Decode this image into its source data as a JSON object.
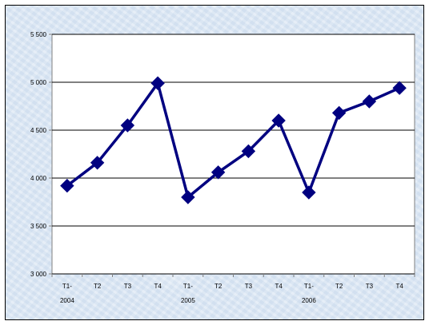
{
  "chart_data": {
    "type": "line",
    "title": "",
    "xlabel": "",
    "ylabel": "",
    "categories": [
      {
        "quarter": "T1-",
        "year": "2004"
      },
      {
        "quarter": "T2",
        "year": ""
      },
      {
        "quarter": "T3",
        "year": ""
      },
      {
        "quarter": "T4",
        "year": ""
      },
      {
        "quarter": "T1-",
        "year": "2005"
      },
      {
        "quarter": "T2",
        "year": ""
      },
      {
        "quarter": "T3",
        "year": ""
      },
      {
        "quarter": "T4",
        "year": ""
      },
      {
        "quarter": "T1-",
        "year": "2006"
      },
      {
        "quarter": "T2",
        "year": ""
      },
      {
        "quarter": "T3",
        "year": ""
      },
      {
        "quarter": "T4",
        "year": ""
      }
    ],
    "series": [
      {
        "values": [
          3920,
          4160,
          4550,
          4990,
          3800,
          4060,
          4280,
          4600,
          3850,
          4680,
          4800,
          4940
        ]
      }
    ],
    "ylim": [
      3000,
      5500
    ],
    "yticks": [
      {
        "value": 3000,
        "label": "3 000"
      },
      {
        "value": 3500,
        "label": "3 500"
      },
      {
        "value": 4000,
        "label": "4 000"
      },
      {
        "value": 4500,
        "label": "4 500"
      },
      {
        "value": 5000,
        "label": "5 000"
      },
      {
        "value": 5500,
        "label": "5 500"
      }
    ],
    "grid": true,
    "legend": "none",
    "colors": {
      "line": "#000080",
      "marker": "#000080",
      "gridline": "#000000",
      "plot_background": "#ffffff"
    },
    "marker": "diamond"
  }
}
